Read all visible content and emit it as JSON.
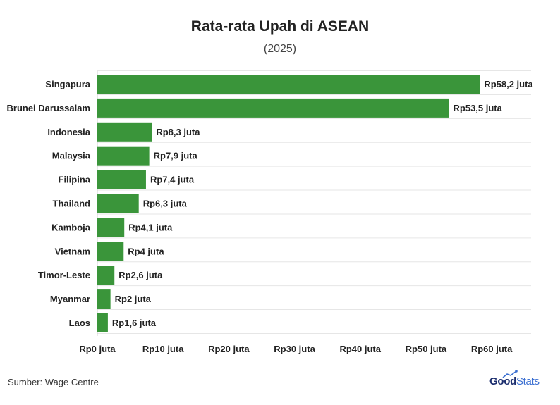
{
  "title": "Rata-rata Upah di ASEAN",
  "subtitle": "(2025)",
  "source": "Sumber: Wage Centre",
  "logo": {
    "part1": "Good",
    "part2": "Stats"
  },
  "colors": {
    "bar": "#3a953a",
    "grid": "#e6e6e6",
    "text": "#222222"
  },
  "chart_data": {
    "type": "bar",
    "orientation": "horizontal",
    "categories": [
      "Singapura",
      "Brunei Darussalam",
      "Indonesia",
      "Malaysia",
      "Filipina",
      "Thailand",
      "Kamboja",
      "Vietnam",
      "Timor-Leste",
      "Myanmar",
      "Laos"
    ],
    "values": [
      58.2,
      53.5,
      8.3,
      7.9,
      7.4,
      6.3,
      4.1,
      4,
      2.6,
      2,
      1.6
    ],
    "data_labels": [
      "Rp58,2 juta",
      "Rp53,5 juta",
      "Rp8,3 juta",
      "Rp7,9 juta",
      "Rp7,4 juta",
      "Rp6,3 juta",
      "Rp4,1 juta",
      "Rp4 juta",
      "Rp2,6 juta",
      "Rp2 juta",
      "Rp1,6 juta"
    ],
    "xticks": [
      0,
      10,
      20,
      30,
      40,
      50,
      60
    ],
    "xtick_labels": [
      "Rp0 juta",
      "Rp10 juta",
      "Rp20 juta",
      "Rp30 juta",
      "Rp40 juta",
      "Rp50 juta",
      "Rp60 juta"
    ],
    "xlim": [
      0,
      66
    ],
    "grid": true,
    "legend": false
  }
}
